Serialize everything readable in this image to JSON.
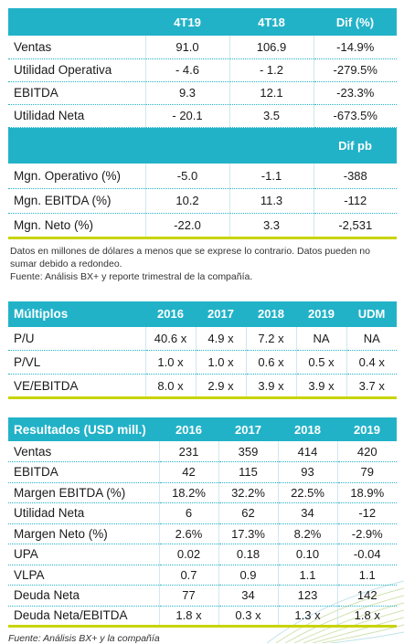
{
  "quarterly": {
    "headers": [
      "",
      "4T19",
      "4T18",
      "Dif (%)"
    ],
    "rows": [
      [
        "Ventas",
        "91.0",
        "106.9",
        "-14.9%"
      ],
      [
        "Utilidad Operativa",
        "- 4.6",
        "- 1.2",
        "-279.5%"
      ],
      [
        "EBITDA",
        "9.3",
        "12.1",
        "-23.3%"
      ],
      [
        "Utilidad Neta",
        "- 20.1",
        "3.5",
        "-673.5%"
      ]
    ],
    "margin_header": "Dif pb",
    "margin_rows": [
      [
        "Mgn. Operativo (%)",
        "-5.0",
        "-1.1",
        "-388"
      ],
      [
        "Mgn. EBITDA (%)",
        "10.2",
        "11.3",
        "-112"
      ],
      [
        "Mgn. Neto (%)",
        "-22.0",
        "3.3",
        "-2,531"
      ]
    ]
  },
  "notes": {
    "line1": "Datos en millones de dólares a menos que se exprese lo contrario. Datos pueden no sumar debido a redondeo.",
    "line2": "Fuente: Análisis BX+ y reporte trimestral de la compañía."
  },
  "multiples": {
    "headers": [
      "Múltiplos",
      "2016",
      "2017",
      "2018",
      "2019",
      "UDM"
    ],
    "rows": [
      [
        "P/U",
        "40.6 x",
        "4.9 x",
        "7.2 x",
        "NA",
        "NA"
      ],
      [
        "P/VL",
        "1.0 x",
        "1.0 x",
        "0.6 x",
        "0.5 x",
        "0.4 x"
      ],
      [
        "VE/EBITDA",
        "8.0 x",
        "2.9 x",
        "3.9 x",
        "3.9 x",
        "3.7 x"
      ]
    ]
  },
  "results": {
    "headers": [
      "Resultados (USD mill.)",
      "2016",
      "2017",
      "2018",
      "2019"
    ],
    "rows": [
      [
        "Ventas",
        "231",
        "359",
        "414",
        "420"
      ],
      [
        "EBITDA",
        "42",
        "115",
        "93",
        "79"
      ],
      [
        " Margen EBITDA (%)",
        "18.2%",
        "32.2%",
        "22.5%",
        "18.9%"
      ],
      [
        "Utilidad Neta",
        "6",
        "62",
        "34",
        "-12"
      ],
      [
        " Margen Neto (%)",
        "2.6%",
        "17.3%",
        "8.2%",
        "-2.9%"
      ],
      [
        "UPA",
        "0.02",
        "0.18",
        "0.10",
        "-0.04"
      ],
      [
        "VLPA",
        "0.7",
        "0.9",
        "1.1",
        "1.1"
      ],
      [
        "Deuda Neta",
        "77",
        "34",
        "123",
        "142"
      ],
      [
        "Deuda Neta/EBITDA",
        "1.8 x",
        "0.3 x",
        "1.3 x",
        "1.8 x"
      ]
    ]
  },
  "source": "Fuente: Análisis BX+ y la compañía",
  "colors": {
    "teal": "#22b2c8",
    "lime": "#c9d400"
  }
}
